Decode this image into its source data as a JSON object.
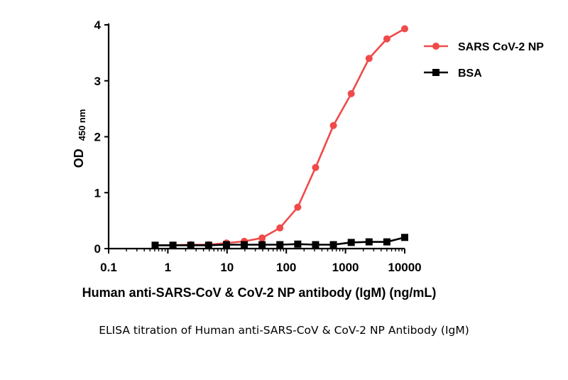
{
  "caption": "ELISA titration of Human anti-SARS-CoV & CoV-2 NP Antibody (IgM)",
  "chart_data": {
    "type": "line",
    "xlabel": "Human anti-SARS-CoV & CoV-2 NP antibody (IgM) (ng/mL)",
    "ylabel": "OD",
    "ylabel_sub": "450 nm",
    "xscale": "log",
    "xlim": [
      0.1,
      10000
    ],
    "ylim": [
      0,
      4
    ],
    "x_ticks": [
      "0.1",
      "1",
      "10",
      "100",
      "1000",
      "10000"
    ],
    "y_ticks": [
      "0",
      "1",
      "2",
      "3",
      "4"
    ],
    "grid": false,
    "legend_position": "top-right",
    "x": [
      0.61,
      1.22,
      2.44,
      4.88,
      9.77,
      19.53,
      39.06,
      78.13,
      156.25,
      312.5,
      625,
      1250,
      2500,
      5000,
      10000
    ],
    "series": [
      {
        "name": "SARS CoV-2 NP",
        "color": "#f04a4a",
        "marker": "circle",
        "values": [
          0.06,
          0.06,
          0.07,
          0.07,
          0.1,
          0.13,
          0.19,
          0.37,
          0.74,
          1.45,
          2.2,
          2.77,
          3.4,
          3.75,
          3.93
        ]
      },
      {
        "name": "BSA",
        "color": "#000000",
        "marker": "square",
        "values": [
          0.06,
          0.06,
          0.06,
          0.06,
          0.07,
          0.07,
          0.07,
          0.07,
          0.08,
          0.07,
          0.07,
          0.11,
          0.12,
          0.12,
          0.2
        ]
      }
    ]
  }
}
